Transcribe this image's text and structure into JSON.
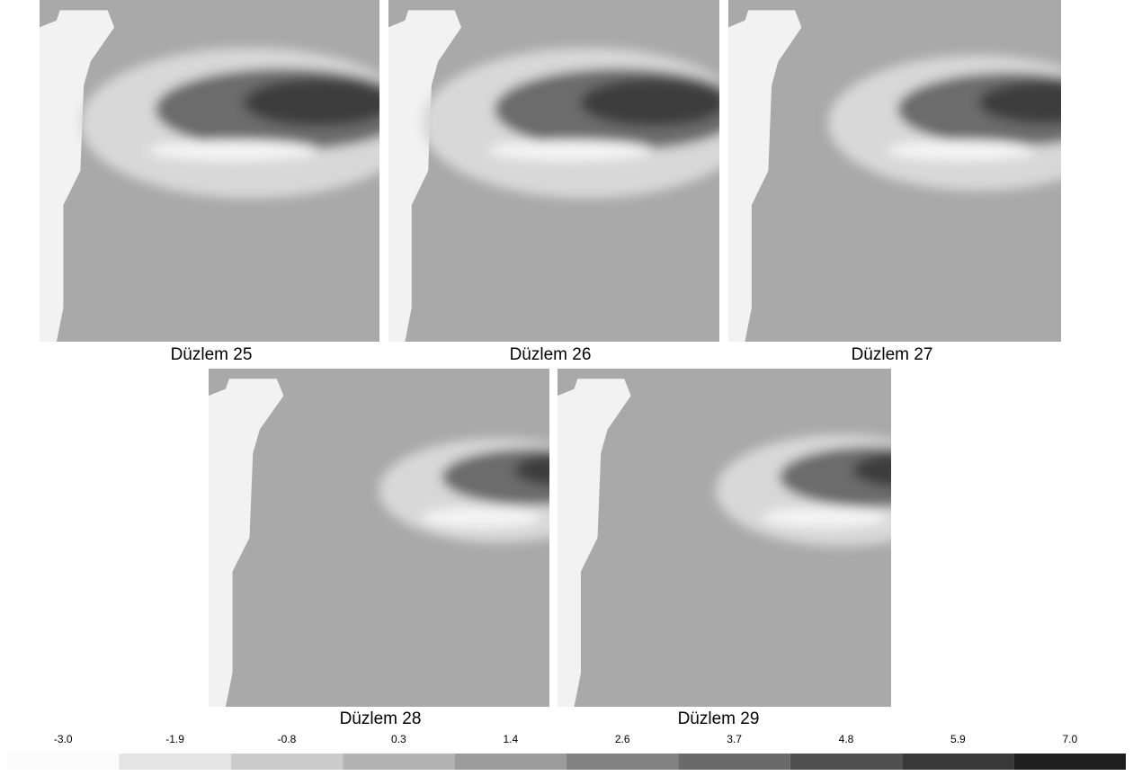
{
  "panels": [
    {
      "label": "Düzlem 25"
    },
    {
      "label": "Düzlem 26"
    },
    {
      "label": "Düzlem 27"
    },
    {
      "label": "Düzlem 28"
    },
    {
      "label": "Düzlem 29"
    }
  ],
  "colorbar": {
    "labels": [
      "-3.0",
      "-1.9",
      "-0.8",
      "0.3",
      "1.4",
      "2.6",
      "3.7",
      "4.8",
      "5.9",
      "7.0"
    ],
    "colors": [
      "#fbfbfb",
      "#e4e4e4",
      "#cbcbcb",
      "#b3b3b3",
      "#9b9b9b",
      "#828282",
      "#6a6a6a",
      "#505050",
      "#383838",
      "#1e1e1e"
    ]
  }
}
